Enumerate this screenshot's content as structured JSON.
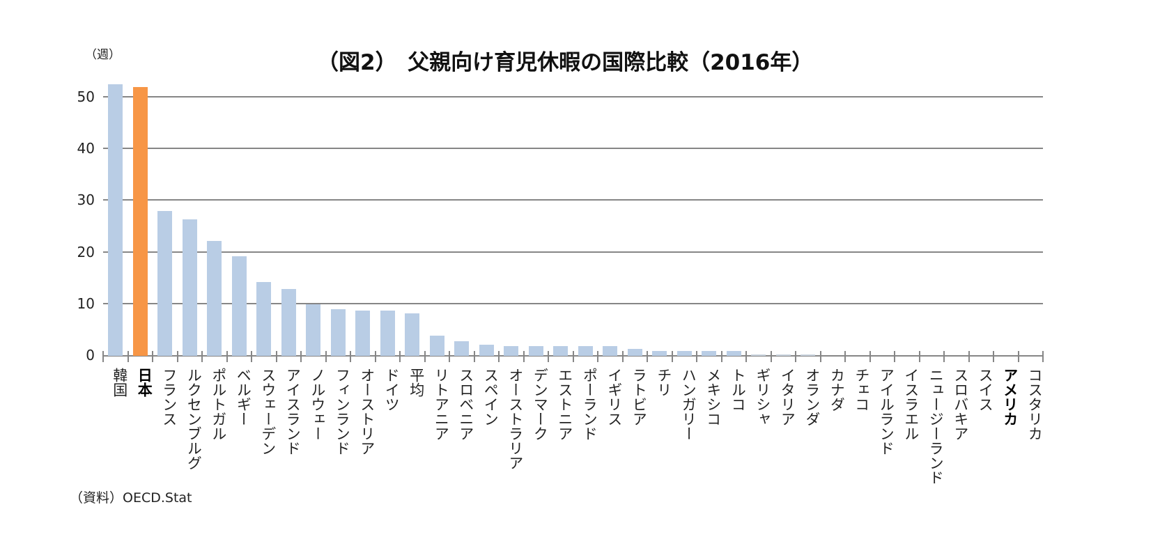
{
  "chart_data": {
    "type": "bar",
    "title": "(図2)　父親向け育児休暇の国際比較(2016年)",
    "xlabel": "",
    "ylabel": "(週)",
    "ylim": [
      0,
      55
    ],
    "yticks": [
      0,
      10,
      20,
      30,
      40,
      50
    ],
    "grid": true,
    "legend": null,
    "source": "(資料) OECD.Stat",
    "colors": {
      "default": "#B9CDE5",
      "highlight": "#F79646",
      "grid": "#868686"
    },
    "highlighted_categories": [
      "日本"
    ],
    "bold_categories": [
      "日本",
      "アメリカ"
    ],
    "categories": [
      "韓国",
      "日本",
      "フランス",
      "ルクセンブルグ",
      "ポルトガル",
      "ベルギー",
      "スウェーデン",
      "アイスランド",
      "ノルウェー",
      "フィンランド",
      "オーストリア",
      "ドイツ",
      "平均",
      "リトアニア",
      "スロベニア",
      "スペイン",
      "オーストラリア",
      "デンマーク",
      "エストニア",
      "ポーランド",
      "イギリス",
      "ラトビア",
      "チリ",
      "ハンガリー",
      "メキシコ",
      "トルコ",
      "ギリシャ",
      "イタリア",
      "オランダ",
      "カナダ",
      "チェコ",
      "アイルランド",
      "イスラエル",
      "ニュージーランド",
      "スロバキア",
      "スイス",
      "アメリカ",
      "コスタリカ"
    ],
    "values": [
      52.6,
      52.0,
      28.0,
      26.4,
      22.3,
      19.3,
      14.3,
      13.0,
      10.0,
      9.0,
      8.7,
      8.7,
      8.2,
      3.9,
      2.8,
      2.1,
      1.9,
      1.9,
      1.9,
      1.9,
      1.9,
      1.4,
      0.9,
      0.9,
      0.9,
      0.9,
      0.3,
      0.3,
      0.3,
      0,
      0,
      0,
      0,
      0,
      0,
      0,
      0,
      0
    ]
  },
  "header": {
    "title": "（図2）　父親向け育児休暇の国際比較（2016年）",
    "unit": "（週）"
  },
  "footer": {
    "source": "（資料）OECD.Stat"
  }
}
